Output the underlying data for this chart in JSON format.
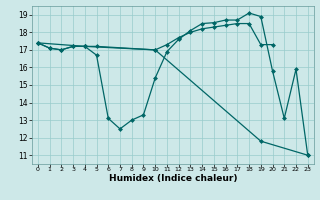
{
  "xlabel": "Humidex (Indice chaleur)",
  "bg_color": "#cde8e8",
  "line_color": "#006666",
  "grid_color": "#99cccc",
  "xlim": [
    -0.5,
    23.5
  ],
  "ylim": [
    10.5,
    19.5
  ],
  "xticks": [
    0,
    1,
    2,
    3,
    4,
    5,
    6,
    7,
    8,
    9,
    10,
    11,
    12,
    13,
    14,
    15,
    16,
    17,
    18,
    19,
    20,
    21,
    22,
    23
  ],
  "yticks": [
    11,
    12,
    13,
    14,
    15,
    16,
    17,
    18,
    19
  ],
  "line1_x": [
    0,
    1,
    2,
    3,
    4,
    5,
    10,
    11,
    12,
    13,
    14,
    15,
    16,
    17,
    18,
    19,
    20
  ],
  "line1_y": [
    17.4,
    17.1,
    17.0,
    17.2,
    17.2,
    17.2,
    17.0,
    17.3,
    17.7,
    18.0,
    18.2,
    18.3,
    18.4,
    18.5,
    18.5,
    17.3,
    17.3
  ],
  "line2_x": [
    0,
    1,
    2,
    3,
    4,
    5,
    6,
    7,
    8,
    9,
    10,
    11,
    12,
    13,
    14,
    15,
    16,
    17,
    18,
    19,
    20,
    21,
    22,
    23
  ],
  "line2_y": [
    17.4,
    17.1,
    17.0,
    17.2,
    17.2,
    16.7,
    13.1,
    12.5,
    13.0,
    13.3,
    15.4,
    16.9,
    17.6,
    18.1,
    18.5,
    18.55,
    18.7,
    18.7,
    19.1,
    18.9,
    15.8,
    13.1,
    15.9,
    11.0
  ],
  "line3_x": [
    0,
    4,
    10,
    19,
    23
  ],
  "line3_y": [
    17.4,
    17.2,
    17.0,
    11.8,
    11.0
  ]
}
